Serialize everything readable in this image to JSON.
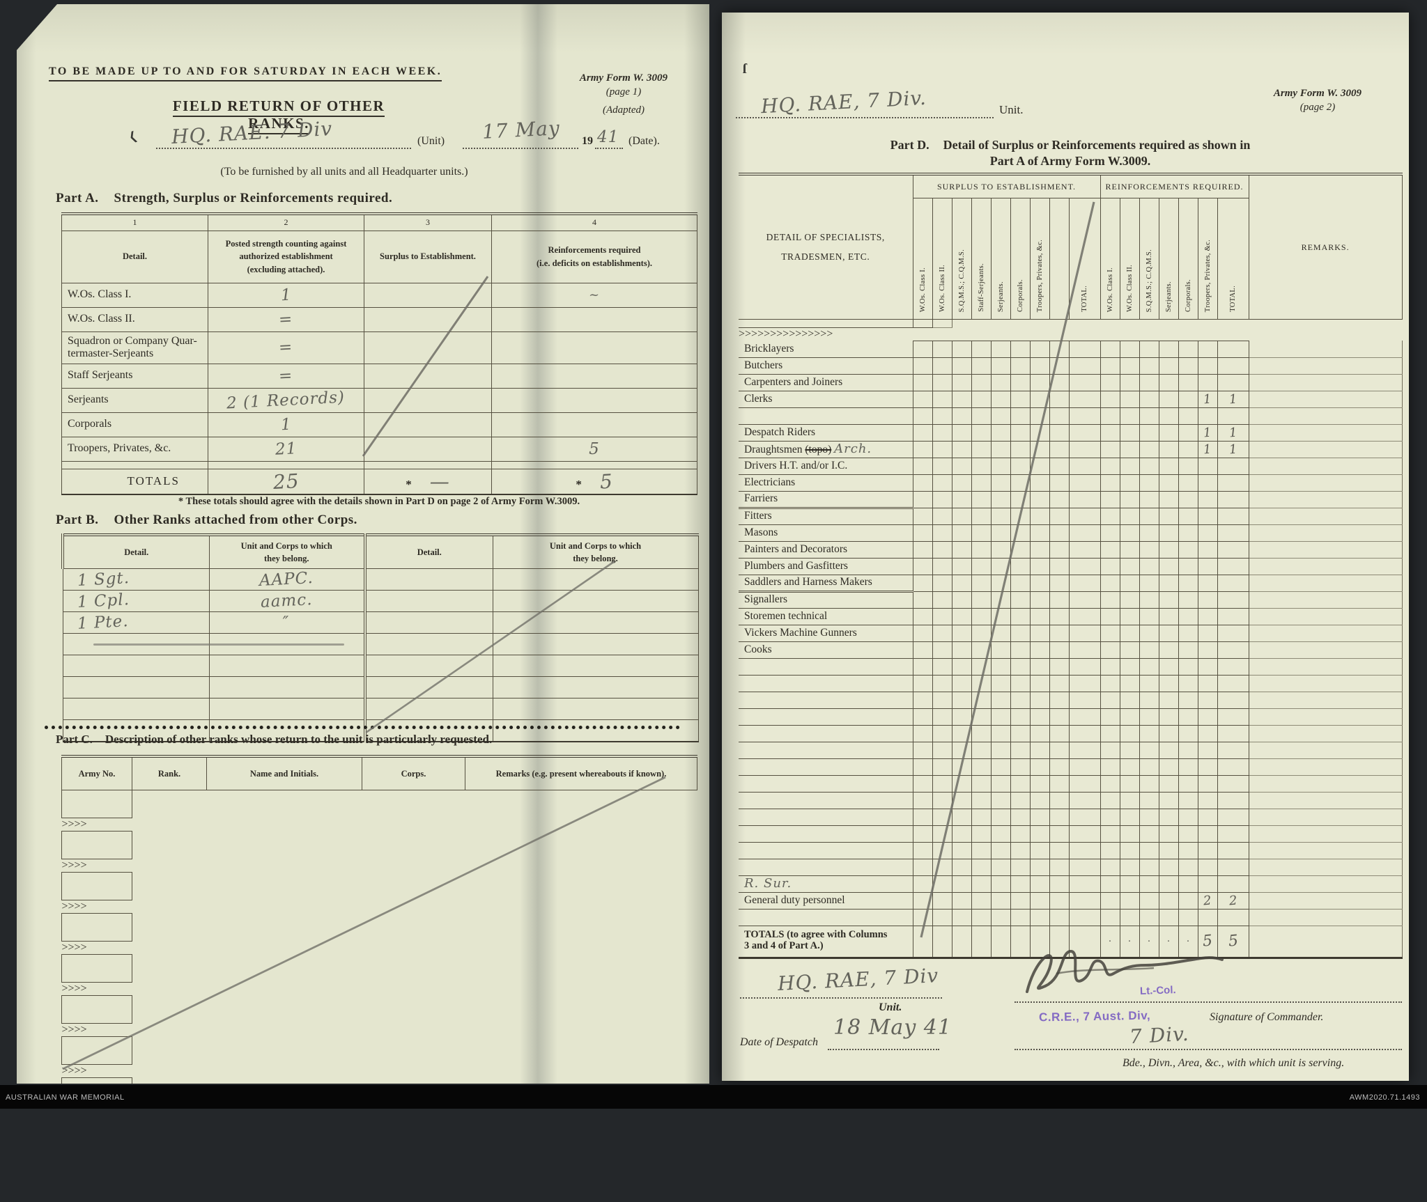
{
  "colors": {
    "paper_left": "#e4e6cf",
    "paper_right": "#e8e9d3",
    "ink": "#2e2b24",
    "pencil": "#63635b",
    "stamp_purple": "#7a5ec2",
    "backdrop": "#24272a"
  },
  "archive_footer": {
    "left": "AUSTRALIAN WAR MEMORIAL",
    "right": "AWM2020.71.1493"
  },
  "page1": {
    "top_note": "TO BE MADE UP TO AND FOR SATURDAY IN EACH WEEK.",
    "form_ref": "Army Form W. 3009",
    "form_page": "(page 1)",
    "form_adapted": "(Adapted)",
    "title": "FIELD RETURN OF OTHER RANKS.",
    "unit_hw": "HQ. RAE. 7 Div",
    "unit_label": "(Unit)",
    "date_hw": "17 May",
    "year_printed": "19",
    "year_hw": "41",
    "date_label": "(Date).",
    "furnish_note": "(To be furnished by all units and all Headquarter units.)",
    "part_a": {
      "title_prefix": "Part A.",
      "title": "Strength, Surplus or Reinforcements required.",
      "col_numbers": [
        "1",
        "2",
        "3",
        "4"
      ],
      "col_headers": [
        "Detail.",
        "Posted strength counting against\nauthorized establishment\n(excluding attached).",
        "Surplus to Establishment.",
        "Reinforcements required\n(i.e. deficits on establishments)."
      ],
      "rows": [
        {
          "label": "W.Os. Class I.",
          "posted": "1",
          "reinf_mark": "~"
        },
        {
          "label": "W.Os. Class II.",
          "posted": "="
        },
        {
          "label": "Squadron or Company Quar-\n   termaster-Serjeants",
          "posted": "="
        },
        {
          "label": "Staff Serjeants",
          "posted": "="
        },
        {
          "label": "Serjeants",
          "posted": "2 (1 Records)"
        },
        {
          "label": "Corporals",
          "posted": "1"
        },
        {
          "label": "Troopers, Privates, &c.",
          "posted": "21",
          "reinf": "5"
        }
      ],
      "totals_label": "TOTALS",
      "totals_posted": "25",
      "star": "*",
      "totals_surplus": "—",
      "totals_reinf": "5",
      "footnote": "* These totals should agree with the details shown in Part D on page 2 of Army Form W.3009."
    },
    "part_b": {
      "title_prefix": "Part B.",
      "title": "Other Ranks attached from other Corps.",
      "col_headers": [
        "Detail.",
        "Unit and Corps to which\nthey belong.",
        "Detail.",
        "Unit and Corps to which\nthey belong."
      ],
      "entries": [
        {
          "detail": "1 Sgt.",
          "unit": "AAPC."
        },
        {
          "detail": "1 Cpl.",
          "unit": "aamc."
        },
        {
          "detail": "1 Pte.",
          "unit": "″"
        }
      ],
      "empty_rows": 5
    },
    "part_c": {
      "title_prefix": "Part C.",
      "title": "Description of other ranks whose return to the unit is particularly requested.",
      "col_headers": [
        "Army No.",
        "Rank.",
        "Name and Initials.",
        "Corps.",
        "Remarks (e.g. present whereabouts if known)."
      ],
      "empty_rows": 10
    }
  },
  "page2": {
    "unit_hw": "HQ. RAE, 7 Div.",
    "unit_label": "Unit.",
    "form_ref": "Army Form W. 3009",
    "form_page": "(page 2)",
    "part_d_title_prefix": "Part D.",
    "part_d_title_line1": "Detail of Surplus or Reinforcements required as shown in",
    "part_d_title_line2": "Part A of Army Form W.3009.",
    "part_d": {
      "detail_header_line1": "DETAIL OF SPECIALISTS,",
      "detail_header_line2": "TRADESMEN, ETC.",
      "surplus_group": "SURPLUS TO ESTABLISHMENT.",
      "reinf_group": "REINFORCEMENTS REQUIRED.",
      "surplus_cols": [
        "W.Os. Class I.",
        "W.Os. Class II.",
        "S.Q.M.S.; C.Q.M.S.",
        "Staff-Serjeants.",
        "Serjeants.",
        "Corporals.",
        "Troopers, Privates, &c.",
        "",
        "TOTAL."
      ],
      "reinf_cols": [
        "W.Os. Class I.",
        "W.Os. Class II.",
        "S.Q.M.S.; C.Q.M.S.",
        "Serjeants.",
        "Corporals.",
        "Troopers, Privates, &c.",
        "TOTAL."
      ],
      "remarks_header": "REMARKS.",
      "rows": [
        {
          "spacer": true
        },
        {
          "label": "Bricklayers"
        },
        {
          "label": "Butchers"
        },
        {
          "label": "Carpenters and Joiners"
        },
        {
          "label": "Clerks",
          "troopers": "1",
          "total": "1"
        },
        {
          "label": ""
        },
        {
          "label": "Despatch Riders",
          "troopers": "1",
          "total": "1"
        },
        {
          "label": "Draughtsmen ",
          "strike": "(topo)",
          "hw": "Arch.",
          "troopers": "1",
          "total": "1"
        },
        {
          "label": "Drivers H.T. and/or I.C."
        },
        {
          "label": "Electricians"
        },
        {
          "label": "Farriers"
        },
        {
          "label": "Fitters",
          "thick": true
        },
        {
          "label": "Masons"
        },
        {
          "label": "Painters and Decorators"
        },
        {
          "label": "Plumbers and Gasfitters"
        },
        {
          "label": "Saddlers and Harness Makers"
        },
        {
          "label": "Signallers",
          "thick": true
        },
        {
          "label": "Storemen technical"
        },
        {
          "label": "Vickers Machine Gunners"
        },
        {
          "label": "Cooks"
        },
        {
          "label": ""
        },
        {
          "label": ""
        },
        {
          "label": ""
        },
        {
          "label": ""
        },
        {
          "label": ""
        },
        {
          "label": ""
        },
        {
          "label": ""
        },
        {
          "label": ""
        },
        {
          "label": ""
        },
        {
          "label": ""
        },
        {
          "label": ""
        },
        {
          "label": ""
        },
        {
          "label": ""
        },
        {
          "label": "",
          "hw_label": "R. Sur."
        },
        {
          "label": "General duty personnel",
          "troopers": "2",
          "total": "2"
        },
        {
          "label": ""
        },
        {
          "totals": true,
          "troopers": "5",
          "total": "5",
          "dot": "·"
        }
      ],
      "totals_label": "TOTALS (to agree with Columns\n3 and 4 of Part A.)"
    },
    "sign_unit_hw": "HQ. RAE, 7 Div",
    "sign_unit_label": "Unit.",
    "stamp_rank": "Lt.-Col.",
    "stamp_unit": "C.R.E., 7 Aust. Div,",
    "signature_label": "Signature of Commander.",
    "despatch_label": "Date of Despatch",
    "despatch_hw": "18 May 41",
    "serving_hw": "7 Div.",
    "serving_label": "Bde., Divn., Area, &c., with which unit is serving."
  }
}
